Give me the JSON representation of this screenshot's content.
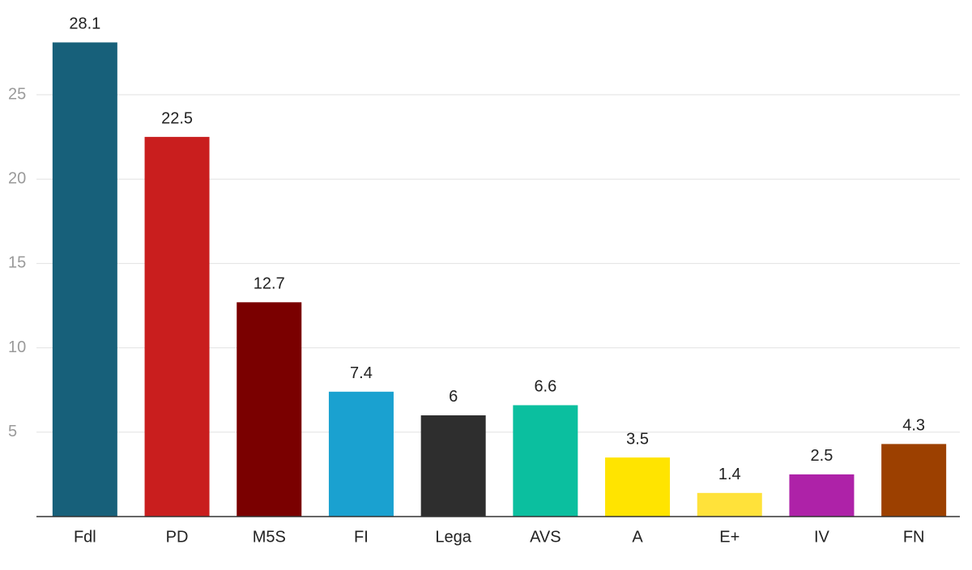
{
  "chart_data": {
    "type": "bar",
    "categories": [
      "Fdl",
      "PD",
      "M5S",
      "FI",
      "Lega",
      "AVS",
      "A",
      "E+",
      "IV",
      "FN"
    ],
    "values": [
      28.1,
      22.5,
      12.7,
      7.4,
      6,
      6.6,
      3.5,
      1.4,
      2.5,
      4.3
    ],
    "colors": [
      "#17607a",
      "#c91e1e",
      "#7a0000",
      "#1aa1d0",
      "#2e2e2e",
      "#0bbf9f",
      "#ffe400",
      "#ffe23a",
      "#ae22a8",
      "#9c4000"
    ],
    "ylim": [
      0,
      30
    ],
    "yticks": [
      5,
      10,
      15,
      20,
      25
    ],
    "grid": true
  }
}
